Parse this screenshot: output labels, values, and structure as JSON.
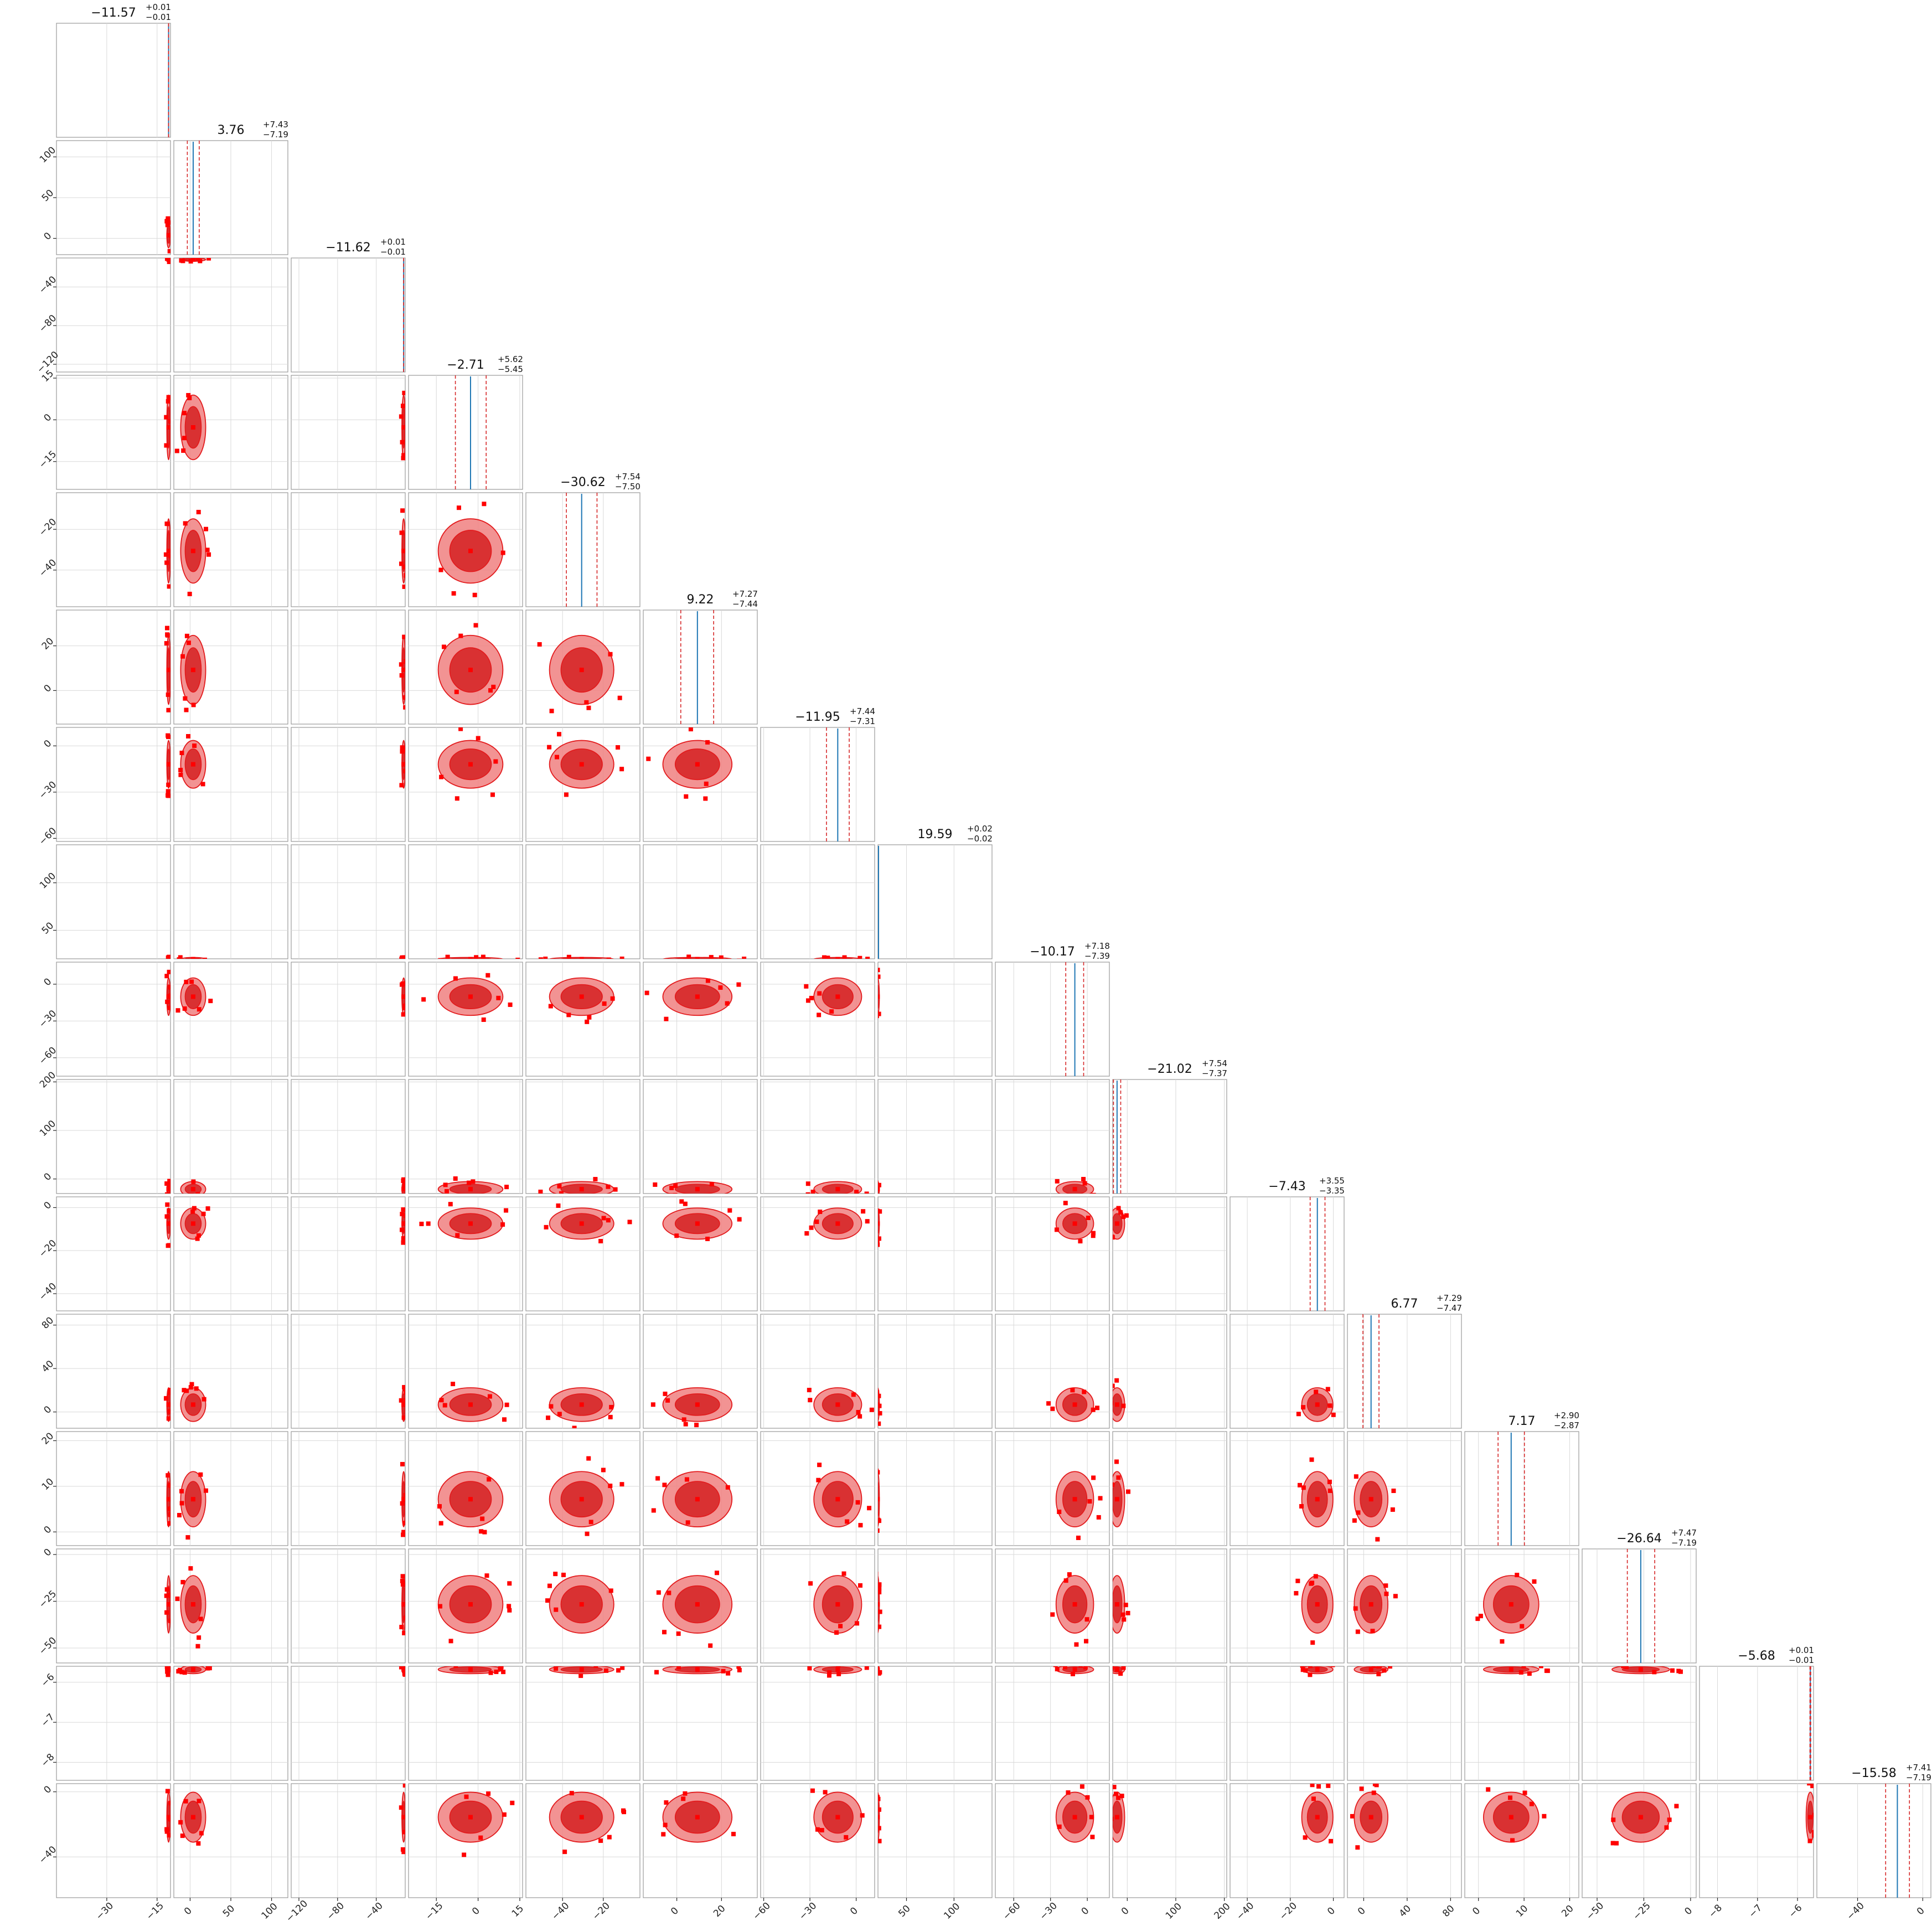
{
  "chart_data": {
    "type": "corner",
    "colors": {
      "contour": "#e31a1c",
      "contour_fill_outer": "#f08080",
      "contour_fill_inner": "#d62728",
      "points": "#ff0000",
      "quantile_lines": "#d62728",
      "histogram": "#1f77b4",
      "truth_marks": "#0000ff",
      "grid": "#d9d9d9",
      "frame": "#999999"
    },
    "grid": true,
    "parameters": [
      {
        "median": -11.57,
        "plus": "0.01",
        "minus": "0.01",
        "range": [
          -45,
          -11
        ],
        "ticks": [
          {
            "v": -30,
            "label": "−30"
          },
          {
            "v": -15,
            "label": "−15"
          }
        ],
        "q": [
          -11.58,
          -11.56
        ]
      },
      {
        "median": 3.76,
        "plus": "7.43",
        "minus": "7.19",
        "range": [
          -20,
          120
        ],
        "ticks": [
          {
            "v": 0,
            "label": "0"
          },
          {
            "v": 50,
            "label": "50"
          },
          {
            "v": 100,
            "label": "100"
          }
        ],
        "q": [
          -3.43,
          11.19
        ]
      },
      {
        "median": -11.62,
        "plus": "0.01",
        "minus": "0.01",
        "range": [
          -128,
          -10
        ],
        "ticks": [
          {
            "v": -120,
            "label": "−120"
          },
          {
            "v": -80,
            "label": "−80"
          },
          {
            "v": -40,
            "label": "−40"
          }
        ],
        "q": [
          -11.63,
          -11.61
        ]
      },
      {
        "median": -2.71,
        "plus": "5.62",
        "minus": "5.45",
        "range": [
          -25,
          16
        ],
        "ticks": [
          {
            "v": -15,
            "label": "−15"
          },
          {
            "v": 0,
            "label": "0"
          },
          {
            "v": 15,
            "label": "15"
          }
        ],
        "q": [
          -8.16,
          2.91
        ]
      },
      {
        "median": -30.62,
        "plus": "7.54",
        "minus": "7.50",
        "range": [
          -58,
          -2
        ],
        "ticks": [
          {
            "v": -40,
            "label": "−40"
          },
          {
            "v": -20,
            "label": "−20"
          }
        ],
        "q": [
          -38.12,
          -23.08
        ]
      },
      {
        "median": 9.22,
        "plus": "7.27",
        "minus": "7.44",
        "range": [
          -15,
          36
        ],
        "ticks": [
          {
            "v": 0,
            "label": "0"
          },
          {
            "v": 20,
            "label": "20"
          }
        ],
        "q": [
          1.78,
          16.49
        ]
      },
      {
        "median": -11.95,
        "plus": "7.44",
        "minus": "7.31",
        "range": [
          -62,
          12
        ],
        "ticks": [
          {
            "v": -60,
            "label": "−60"
          },
          {
            "v": -30,
            "label": "−30"
          },
          {
            "v": 0,
            "label": "0"
          }
        ],
        "q": [
          -19.26,
          -4.51
        ]
      },
      {
        "median": 19.59,
        "plus": "0.02",
        "minus": "0.02",
        "range": [
          20,
          140
        ],
        "ticks": [
          {
            "v": 50,
            "label": "50"
          },
          {
            "v": 100,
            "label": "100"
          }
        ],
        "q": [
          19.57,
          19.61
        ]
      },
      {
        "median": -10.17,
        "plus": "7.18",
        "minus": "7.39",
        "range": [
          -75,
          18
        ],
        "ticks": [
          {
            "v": -60,
            "label": "−60"
          },
          {
            "v": -30,
            "label": "−30"
          },
          {
            "v": 0,
            "label": "0"
          }
        ],
        "q": [
          -17.56,
          -2.99
        ]
      },
      {
        "median": -21.02,
        "plus": "7.54",
        "minus": "7.37",
        "range": [
          -30,
          205
        ],
        "ticks": [
          {
            "v": 0,
            "label": "0"
          },
          {
            "v": 100,
            "label": "100"
          },
          {
            "v": 200,
            "label": "200"
          }
        ],
        "q": [
          -28.39,
          -13.48
        ]
      },
      {
        "median": -7.43,
        "plus": "3.55",
        "minus": "3.35",
        "range": [
          -48,
          5
        ],
        "ticks": [
          {
            "v": -40,
            "label": "−40"
          },
          {
            "v": -20,
            "label": "−20"
          },
          {
            "v": 0,
            "label": "0"
          }
        ],
        "q": [
          -10.78,
          -3.88
        ]
      },
      {
        "median": 6.77,
        "plus": "7.29",
        "minus": "7.47",
        "range": [
          -15,
          90
        ],
        "ticks": [
          {
            "v": 0,
            "label": "0"
          },
          {
            "v": 40,
            "label": "40"
          },
          {
            "v": 80,
            "label": "80"
          }
        ],
        "q": [
          -0.7,
          14.06
        ]
      },
      {
        "median": 7.17,
        "plus": "2.90",
        "minus": "2.87",
        "range": [
          -3,
          22
        ],
        "ticks": [
          {
            "v": 0,
            "label": "0"
          },
          {
            "v": 10,
            "label": "10"
          },
          {
            "v": 20,
            "label": "20"
          }
        ],
        "q": [
          4.3,
          10.07
        ]
      },
      {
        "median": -26.64,
        "plus": "7.47",
        "minus": "7.19",
        "range": [
          -58,
          3
        ],
        "ticks": [
          {
            "v": -50,
            "label": "−50"
          },
          {
            "v": -25,
            "label": "−25"
          },
          {
            "v": 0,
            "label": "0"
          }
        ],
        "q": [
          -33.83,
          -19.17
        ]
      },
      {
        "median": -5.68,
        "plus": "0.01",
        "minus": "0.01",
        "range": [
          -8.45,
          -5.6
        ],
        "ticks": [
          {
            "v": -8,
            "label": "−8"
          },
          {
            "v": -7,
            "label": "−7"
          },
          {
            "v": -6,
            "label": "−6"
          }
        ],
        "q": [
          -5.69,
          -5.67
        ]
      },
      {
        "median": -15.58,
        "plus": "7.41",
        "minus": "7.19",
        "range": [
          -65,
          5
        ],
        "ticks": [
          {
            "v": -40,
            "label": "−40"
          },
          {
            "v": 0,
            "label": "0"
          }
        ],
        "q": [
          -22.77,
          -8.17
        ]
      }
    ]
  }
}
